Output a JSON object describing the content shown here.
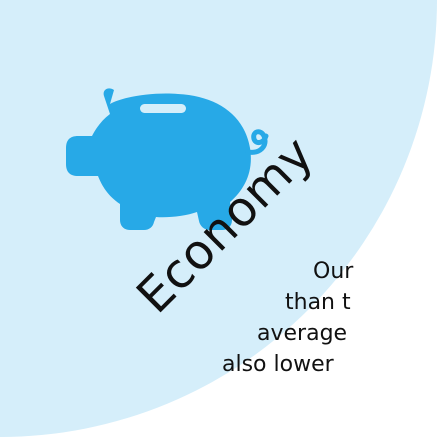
{
  "colors": {
    "background": "#ffffff",
    "quarter_circle": "#d5eefa",
    "piggy": "#27a9e7",
    "text": "#111111"
  },
  "icon": "piggy-bank-icon",
  "heading": "Economy",
  "body_lines": [
    "Our",
    "than t",
    "average",
    "also lower"
  ]
}
